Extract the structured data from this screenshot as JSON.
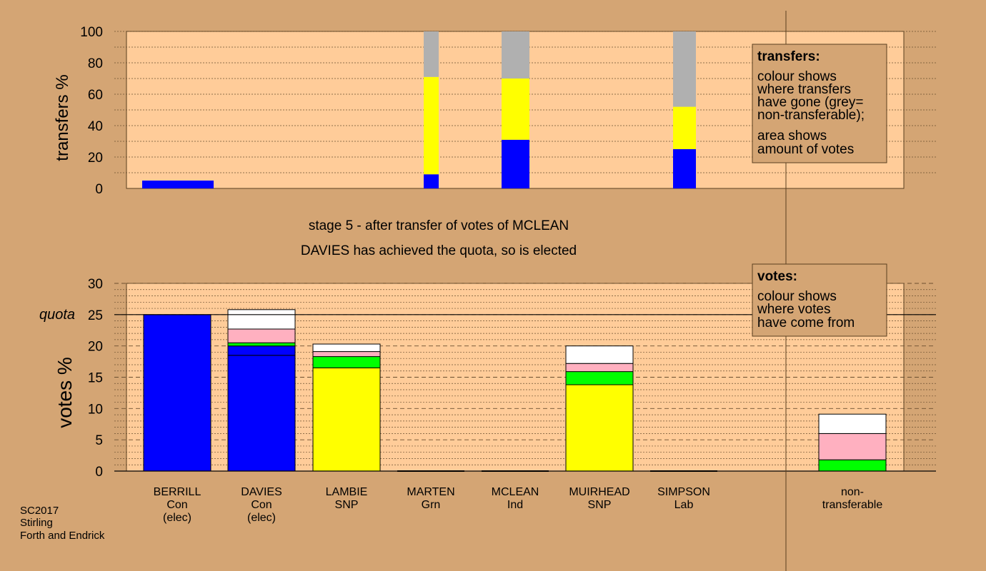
{
  "colors": {
    "background": "#d4a574",
    "plot_bg": "#ffcc99",
    "blue": "#0000ff",
    "yellow": "#ffff00",
    "green": "#00ff00",
    "pink": "#ffb0c0",
    "white": "#ffffff",
    "grey": "#b0b0b0"
  },
  "stage_title": "stage 5 - after transfer of votes of MCLEAN",
  "stage_subtitle": "DAVIES has achieved the quota, so is elected",
  "footer": [
    "SC2017",
    "Stirling",
    "Forth and Endrick"
  ],
  "transfers_legend": {
    "title": "transfers:",
    "lines": [
      "colour shows",
      "where transfers",
      "have gone (grey=",
      "non-transferable);"
    ],
    "lines2": [
      "area shows",
      "amount of votes"
    ]
  },
  "votes_legend": {
    "title": "votes:",
    "lines": [
      "colour shows",
      "where votes",
      "have come from"
    ]
  },
  "chart_data": [
    {
      "type": "bar",
      "name": "transfers",
      "ylabel": "transfers %",
      "ylim": [
        0,
        100
      ],
      "yticks": [
        0,
        20,
        40,
        60,
        80,
        100
      ],
      "bars": [
        {
          "candidate": "BERRILL",
          "segments": [
            {
              "color": "blue",
              "value": 5
            }
          ]
        },
        {
          "candidate": "LAMBIE/MARTEN",
          "segments": [
            {
              "color": "blue",
              "value": 9
            },
            {
              "color": "yellow",
              "value": 62
            },
            {
              "color": "grey",
              "value": 29
            }
          ]
        },
        {
          "candidate": "MCLEAN",
          "segments": [
            {
              "color": "blue",
              "value": 31
            },
            {
              "color": "yellow",
              "value": 39
            },
            {
              "color": "grey",
              "value": 30
            }
          ]
        },
        {
          "candidate": "SIMPSON",
          "segments": [
            {
              "color": "blue",
              "value": 25
            },
            {
              "color": "yellow",
              "value": 27
            },
            {
              "color": "grey",
              "value": 48
            }
          ]
        }
      ]
    },
    {
      "type": "bar",
      "name": "votes",
      "ylabel": "votes %",
      "ylim": [
        0,
        30
      ],
      "yticks": [
        0,
        5,
        10,
        15,
        20,
        25,
        30
      ],
      "quota": 25,
      "quota_label": "quota",
      "categories": [
        {
          "label": [
            "BERRILL",
            "Con",
            "(elec)"
          ],
          "segments": [
            {
              "color": "blue",
              "value": 25
            }
          ]
        },
        {
          "label": [
            "DAVIES",
            "Con",
            "(elec)"
          ],
          "segments": [
            {
              "color": "blue",
              "value": 18.5
            },
            {
              "color": "blue",
              "value": 1.5
            },
            {
              "color": "green",
              "value": 0.5
            },
            {
              "color": "pink",
              "value": 2.2
            },
            {
              "color": "white",
              "value": 3.1
            }
          ]
        },
        {
          "label": [
            "LAMBIE",
            "SNP"
          ],
          "segments": [
            {
              "color": "yellow",
              "value": 16.5
            },
            {
              "color": "green",
              "value": 1.8
            },
            {
              "color": "pink",
              "value": 0.8
            },
            {
              "color": "white",
              "value": 1.2
            }
          ]
        },
        {
          "label": [
            "MARTEN",
            "Grn"
          ],
          "segments": []
        },
        {
          "label": [
            "MCLEAN",
            "Ind"
          ],
          "segments": []
        },
        {
          "label": [
            "MUIRHEAD",
            "SNP"
          ],
          "segments": [
            {
              "color": "yellow",
              "value": 13.8
            },
            {
              "color": "green",
              "value": 2.1
            },
            {
              "color": "pink",
              "value": 1.3
            },
            {
              "color": "white",
              "value": 2.8
            }
          ]
        },
        {
          "label": [
            "SIMPSON",
            "Lab"
          ],
          "segments": []
        },
        {
          "label": [
            "non-",
            "transferable"
          ],
          "segments": [
            {
              "color": "green",
              "value": 1.8
            },
            {
              "color": "pink",
              "value": 4.2
            },
            {
              "color": "white",
              "value": 3.1
            }
          ]
        }
      ]
    }
  ]
}
